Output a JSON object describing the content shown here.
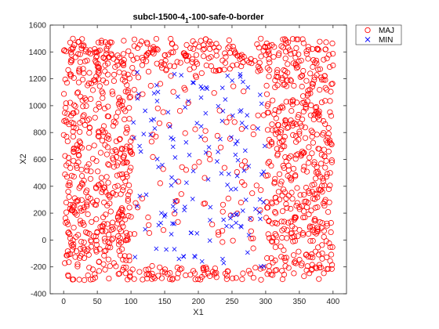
{
  "chart_data": {
    "type": "scatter",
    "title_main": "subcl-1500-4",
    "title_sub": "1",
    "title_rest": "-100-safe-0-border",
    "xlabel": "X1",
    "ylabel": "X2",
    "xlim": [
      -20,
      420
    ],
    "ylim": [
      -400,
      1600
    ],
    "xticks": [
      "0",
      "50",
      "100",
      "150",
      "200",
      "250",
      "300",
      "350",
      "400"
    ],
    "yticks": [
      "-400",
      "-200",
      "0",
      "200",
      "400",
      "600",
      "800",
      "1000",
      "1200",
      "1400",
      "1600"
    ],
    "legend_position": "outside-top-right",
    "grid": false,
    "colors": {
      "maj": "#ff0000",
      "min": "#0000ff"
    },
    "series": [
      {
        "name": "MAJ",
        "marker": "circle",
        "count": 1350,
        "region": "outer frame x 0-400, y -300-1500"
      },
      {
        "name": "MIN",
        "marker": "x",
        "count": 150,
        "region": "inner area x 100-300, y -200-1250"
      }
    ]
  }
}
